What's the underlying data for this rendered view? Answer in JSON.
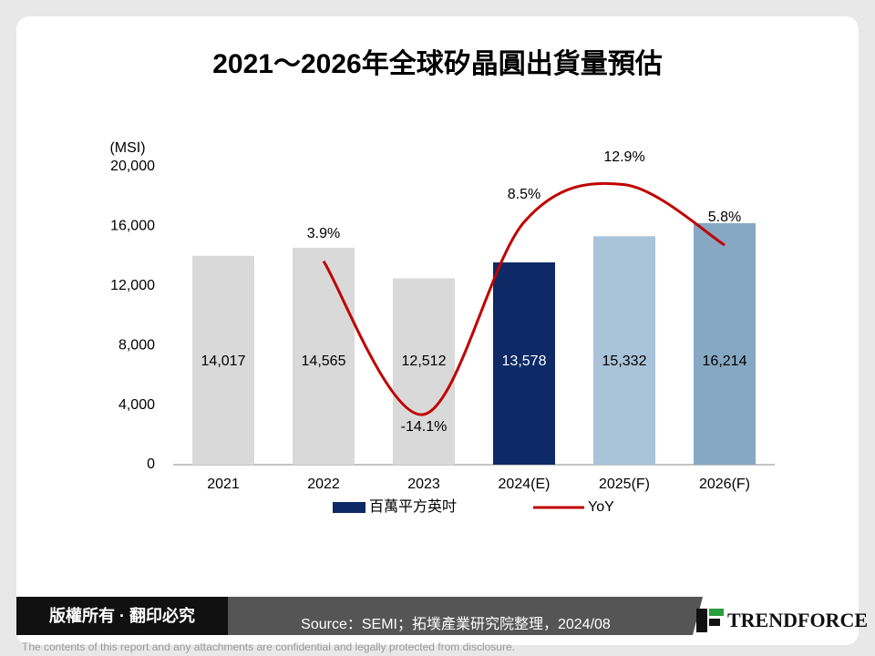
{
  "title": "2021～2026年全球矽晶圓出貨量預估",
  "chart_data": {
    "type": "bar-line",
    "unit_label": "(MSI)",
    "categories": [
      "2021",
      "2022",
      "2023",
      "2024(E)",
      "2025(F)",
      "2026(F)"
    ],
    "series": [
      {
        "name": "百萬平方英吋",
        "type": "bar",
        "color": "#0d2a66",
        "colors": [
          "#d9d9d9",
          "#d9d9d9",
          "#d9d9d9",
          "#0d2a66",
          "#a9c3d8",
          "#86a8c3"
        ],
        "values": [
          14017,
          14565,
          12512,
          13578,
          15332,
          16214
        ],
        "value_labels": [
          "14,017",
          "14,565",
          "12,512",
          "13,578",
          "15,332",
          "16,214"
        ]
      },
      {
        "name": "YoY",
        "type": "line",
        "color": "#c00000",
        "axis": "y2",
        "values": [
          null,
          3.9,
          -14.1,
          8.5,
          12.9,
          5.8
        ],
        "value_labels": [
          null,
          "3.9%",
          "-14.1%",
          "8.5%",
          "12.9%",
          "5.8%"
        ]
      }
    ],
    "ylim": [
      0,
      20000
    ],
    "yticks": [
      0,
      {
        "value": 4000,
        "label": "4,000"
      },
      {
        "value": 8000,
        "label": "8,000"
      },
      {
        "value": 12000,
        "label": "12,000"
      },
      {
        "value": 16000,
        "label": "16,000"
      },
      {
        "value": 20000,
        "label": "20,000"
      }
    ],
    "y2lim": [
      -20,
      15
    ]
  },
  "footer": {
    "rights": "版權所有 · 翻印必究",
    "source": "Source：SEMI；拓墣產業研究院整理，2024/08",
    "logo": "TRENDFORCE",
    "disclaimer": "The contents of this report and any attachments are confidential and legally protected from disclosure."
  }
}
